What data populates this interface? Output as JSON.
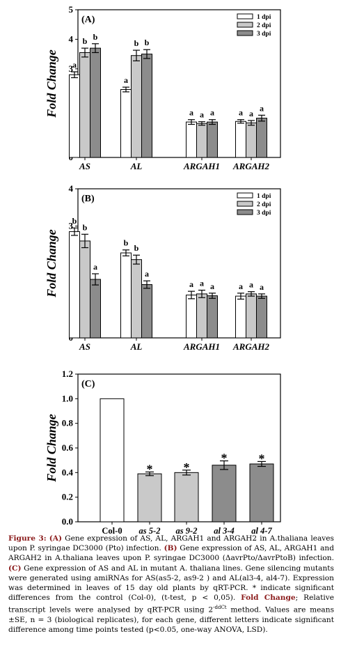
{
  "colors": {
    "d1": "#ffffff",
    "d2": "#c9c9c9",
    "d3": "#8c8c8c",
    "title_accent": "#8a1a1a"
  },
  "chart_data": [
    {
      "type": "bar",
      "panel": "(A)",
      "ylabel": "Fold Change",
      "ylim": [
        0,
        5
      ],
      "yticks": [
        "0",
        "1",
        "2",
        "3",
        "4",
        "5"
      ],
      "categories": [
        "AS",
        "AL",
        "ARGAH1",
        "ARGAH2"
      ],
      "legend_position": "top-right",
      "series": [
        {
          "name": "1 dpi",
          "values": [
            2.8,
            2.3,
            1.2,
            1.22
          ],
          "errors": [
            0.1,
            0.08,
            0.08,
            0.06
          ],
          "letters": [
            "a",
            "a",
            "a",
            "a"
          ]
        },
        {
          "name": "2 dpi",
          "values": [
            3.55,
            3.45,
            1.15,
            1.17
          ],
          "errors": [
            0.15,
            0.18,
            0.06,
            0.08
          ],
          "letters": [
            "b",
            "b",
            "a",
            "a"
          ]
        },
        {
          "name": "3 dpi",
          "values": [
            3.7,
            3.5,
            1.2,
            1.33
          ],
          "errors": [
            0.15,
            0.15,
            0.08,
            0.1
          ],
          "letters": [
            "b",
            "b",
            "a",
            "a"
          ]
        }
      ]
    },
    {
      "type": "bar",
      "panel": "(B)",
      "ylabel": "Fold Change",
      "ylim": [
        0,
        4
      ],
      "yticks": [
        "0",
        "1",
        "2",
        "3",
        "4"
      ],
      "categories": [
        "AS",
        "AL",
        "ARGAH1",
        "ARGAH2"
      ],
      "legend_position": "top-right",
      "series": [
        {
          "name": "1 dpi",
          "values": [
            2.85,
            2.28,
            1.15,
            1.12
          ],
          "errors": [
            0.1,
            0.08,
            0.1,
            0.08
          ],
          "letters": [
            "b",
            "b",
            "a",
            "a"
          ]
        },
        {
          "name": "2 dpi",
          "values": [
            2.6,
            2.1,
            1.18,
            1.18
          ],
          "errors": [
            0.18,
            0.12,
            0.1,
            0.06
          ],
          "letters": [
            "b",
            "b",
            "a",
            "a"
          ]
        },
        {
          "name": "3 dpi",
          "values": [
            1.57,
            1.43,
            1.13,
            1.12
          ],
          "errors": [
            0.15,
            0.1,
            0.07,
            0.06
          ],
          "letters": [
            "a",
            "a",
            "a",
            "a"
          ]
        }
      ]
    },
    {
      "type": "bar",
      "panel": "(C)",
      "ylabel": "Fold Change",
      "ylim": [
        0,
        1.2
      ],
      "yticks": [
        "0.0",
        "0.2",
        "0.4",
        "0.6",
        "0.8",
        "1.0",
        "1.2"
      ],
      "categories": [
        "Col-0",
        "as 5-2",
        "as 9-2",
        "al 3-4",
        "al 4-7"
      ],
      "values": [
        1.0,
        0.39,
        0.4,
        0.46,
        0.47
      ],
      "errors": [
        0,
        0.015,
        0.02,
        0.035,
        0.02
      ],
      "marks": [
        "",
        "*",
        "*",
        "*",
        "*"
      ],
      "bar_colors": [
        "#ffffff",
        "#c9c9c9",
        "#c9c9c9",
        "#8c8c8c",
        "#8c8c8c"
      ]
    }
  ],
  "caption": {
    "label": "Figure 3:",
    "a_tag": "(A)",
    "a_text": " Gene expression of AS, AL, ARGAH1 and ARGAH2 in A.thaliana leaves upon P. syringae DC3000 (Pto) infection. ",
    "b_tag": "(B)",
    "b_text": " Gene expression of AS, AL, ARGAH1 and ARGAH2 in A.thaliana leaves upon P. syringae DC3000 (ΔavrPto/ΔavrPtoB) infection. ",
    "c_tag": "(C)",
    "c_text": " Gene expression of AS and AL in mutant A. thaliana lines. Gene silencing mutants were generated using amiRNAs for AS(as5-2, as9-2 ) and AL(al3-4, al4-7). Expression was determined in leaves of 15 day old plants by qRT-PCR. * indicate significant differences from the control (Col-0), (t-test, p < 0,05). ",
    "fc_tag": "Fold Change",
    "fc_text": "; Relative transcript levels were analysed by qRT-PCR using 2",
    "sup": "-ddCt",
    "end_text": " method. Values are means ±SE, n = 3 (biological replicates), for each gene, different letters indicate significant difference among time points tested (p<0.05, one-way ANOVA, LSD)."
  }
}
